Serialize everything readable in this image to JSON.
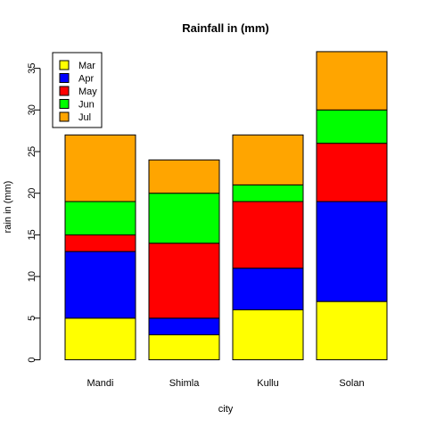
{
  "chart_data": {
    "type": "bar",
    "stacked": true,
    "title": "Rainfall in (mm)",
    "xlabel": "city",
    "ylabel": "rain in (mm)",
    "categories": [
      "Mandi",
      "Shimla",
      "Kullu",
      "Solan"
    ],
    "ylim": [
      0,
      37
    ],
    "yticks": [
      0,
      5,
      10,
      15,
      20,
      25,
      30,
      35
    ],
    "grid": false,
    "legend_position": "top-left",
    "series": [
      {
        "name": "Mar",
        "color": "#ffff00",
        "values": [
          5,
          3,
          6,
          7
        ]
      },
      {
        "name": "Apr",
        "color": "#0000ff",
        "values": [
          8,
          2,
          5,
          12
        ]
      },
      {
        "name": "May",
        "color": "#ff0000",
        "values": [
          2,
          9,
          8,
          7
        ]
      },
      {
        "name": "Jun",
        "color": "#00ff00",
        "values": [
          4,
          6,
          2,
          4
        ]
      },
      {
        "name": "Jul",
        "color": "#ffa500",
        "values": [
          8,
          4,
          6,
          7
        ]
      }
    ]
  }
}
